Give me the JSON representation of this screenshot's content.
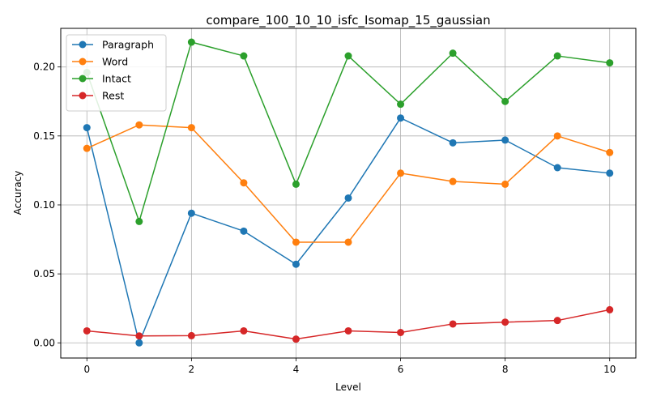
{
  "chart_data": {
    "type": "line",
    "title": "compare_100_10_10_isfc_Isomap_15_gaussian",
    "xlabel": "Level",
    "ylabel": "Accuracy",
    "x": [
      0,
      1,
      2,
      3,
      4,
      5,
      6,
      7,
      8,
      9,
      10
    ],
    "xlim": [
      -0.5,
      10.5
    ],
    "ylim": [
      -0.011,
      0.228
    ],
    "xticks": [
      0,
      2,
      4,
      6,
      8,
      10
    ],
    "xtick_labels": [
      "0",
      "2",
      "4",
      "6",
      "8",
      "10"
    ],
    "yticks": [
      0.0,
      0.05,
      0.1,
      0.15,
      0.2
    ],
    "ytick_labels": [
      "0.00",
      "0.05",
      "0.10",
      "0.15",
      "0.20"
    ],
    "grid": true,
    "legend_position": "top-left",
    "series": [
      {
        "name": "Paragraph",
        "color": "#1f77b4",
        "values": [
          0.156,
          0.0,
          0.094,
          0.081,
          0.057,
          0.105,
          0.163,
          0.145,
          0.147,
          0.127,
          0.123
        ]
      },
      {
        "name": "Word",
        "color": "#ff7f0e",
        "values": [
          0.141,
          0.158,
          0.156,
          0.116,
          0.073,
          0.073,
          0.123,
          0.117,
          0.115,
          0.15,
          0.138
        ]
      },
      {
        "name": "Intact",
        "color": "#2ca02c",
        "values": [
          0.196,
          0.088,
          0.218,
          0.208,
          0.115,
          0.208,
          0.173,
          0.21,
          0.175,
          0.208,
          0.203
        ]
      },
      {
        "name": "Rest",
        "color": "#d62728",
        "values": [
          0.0087,
          0.005,
          0.0052,
          0.0087,
          0.0027,
          0.0087,
          0.0075,
          0.0137,
          0.015,
          0.0162,
          0.024
        ]
      }
    ]
  }
}
